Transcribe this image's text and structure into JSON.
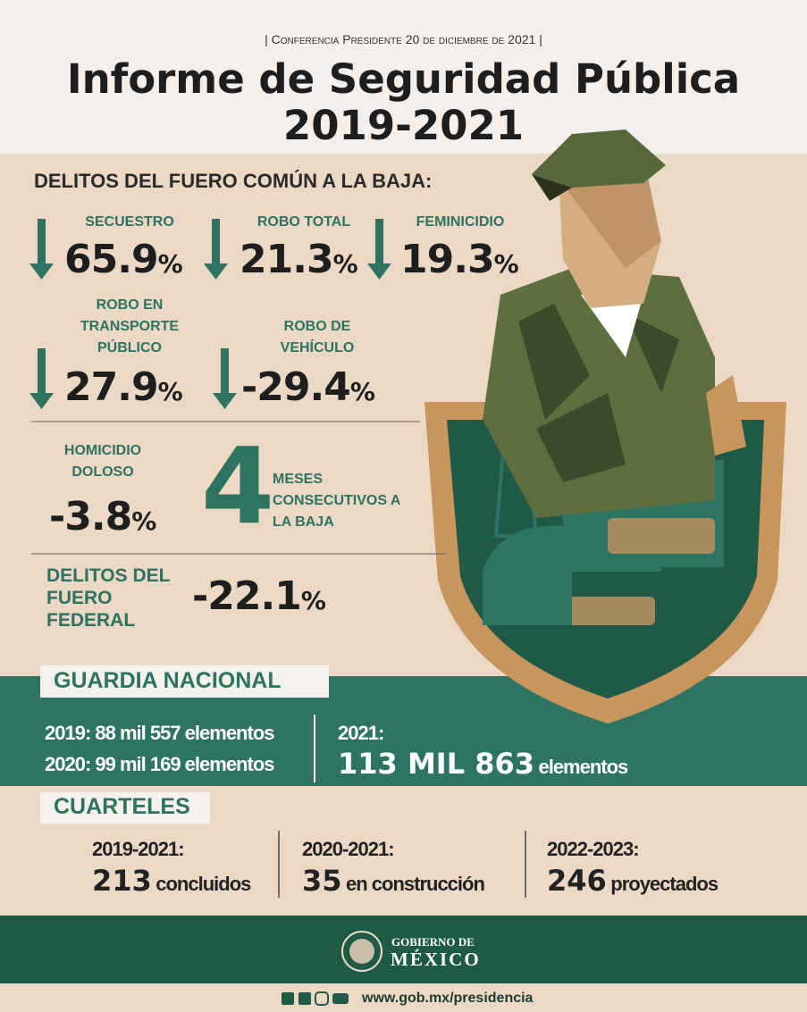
{
  "header": {
    "subtitle": "| Conferencia Presidente 20 de diciembre de 2021 |",
    "title": "Informe de Seguridad Pública",
    "years": "2019-2021"
  },
  "fuero_comun": {
    "heading": "DELITOS DEL FUERO COMÚN A LA BAJA:",
    "items": [
      {
        "label": "SECUESTRO",
        "value": "65.9",
        "unit": "%"
      },
      {
        "label": "ROBO TOTAL",
        "value": "21.3",
        "unit": "%"
      },
      {
        "label": "FEMINICIDIO",
        "value": "19.3",
        "unit": "%"
      },
      {
        "label": "ROBO EN TRANSPORTE PÚBLICO",
        "value": "27.9",
        "unit": "%"
      },
      {
        "label": "ROBO DE VEHÍCULO",
        "value": "-29.4",
        "unit": "%"
      },
      {
        "label": "HOMICIDIO DOLOSO",
        "value": "-3.8",
        "unit": "%"
      }
    ],
    "months": {
      "number": "4",
      "text": "MESES CONSECUTIVOS A LA BAJA"
    }
  },
  "fuero_federal": {
    "label": "DELITOS DEL FUERO FEDERAL",
    "value": "-22.1",
    "unit": "%"
  },
  "guardia": {
    "title": "GUARDIA NACIONAL",
    "lines": [
      "2019: 88 mil 557 elementos",
      "2020: 99 mil 169 elementos"
    ],
    "current": {
      "year": "2021:",
      "number": "113 MIL 863",
      "text": "elementos"
    }
  },
  "cuarteles": {
    "title": "CUARTELES",
    "items": [
      {
        "period": "2019-2021:",
        "number": "213",
        "text": "concluidos"
      },
      {
        "period": "2020-2021:",
        "number": "35",
        "text": "en construcción"
      },
      {
        "period": "2022-2023:",
        "number": "246",
        "text": "proyectados"
      }
    ]
  },
  "footer": {
    "gov_line1": "GOBIERNO DE",
    "gov_line2": "MÉXICO",
    "url": "www.gob.mx/presidencia"
  }
}
